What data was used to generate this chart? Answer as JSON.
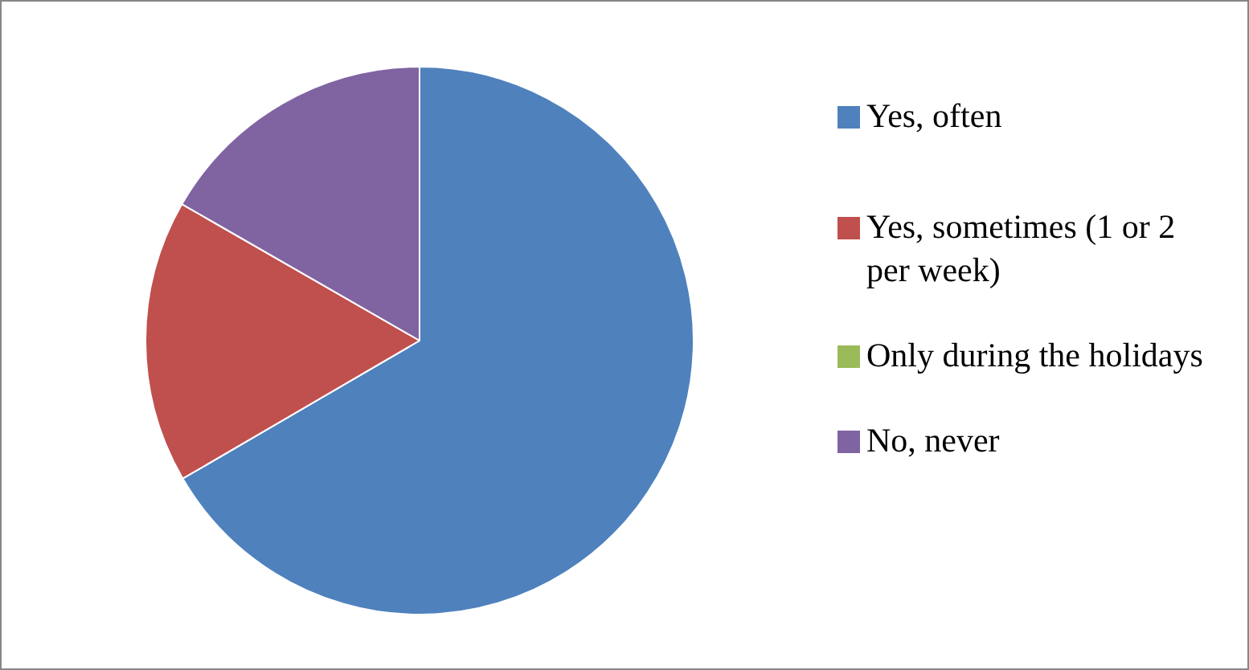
{
  "chart_data": {
    "type": "pie",
    "categories": [
      "Yes, often",
      "Yes, sometimes (1 or 2 per week)",
      "Only during the holidays",
      "No, never"
    ],
    "values": [
      66.6,
      16.7,
      0,
      16.7
    ],
    "colors": [
      "#4f81bd",
      "#c0504d",
      "#9bbb59",
      "#8064a2"
    ],
    "legend": "right"
  }
}
